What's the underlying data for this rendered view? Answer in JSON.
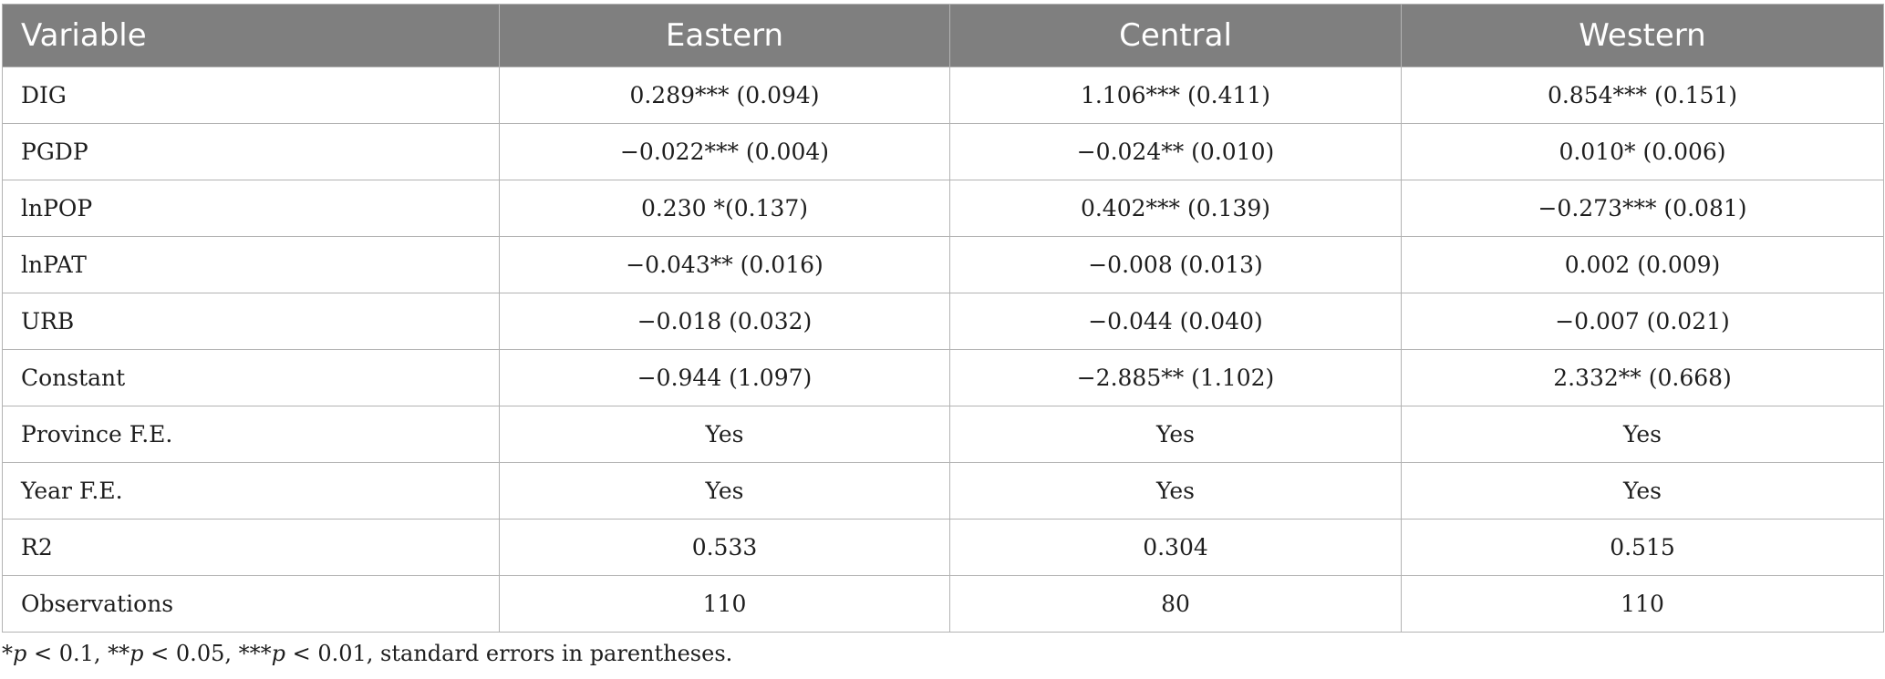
{
  "table": {
    "headers": [
      "Variable",
      "Eastern",
      "Central",
      "Western"
    ],
    "rows": [
      [
        "DIG",
        "0.289*** (0.094)",
        "1.106*** (0.411)",
        "0.854*** (0.151)"
      ],
      [
        "PGDP",
        "−0.022*** (0.004)",
        "−0.024** (0.010)",
        "0.010* (0.006)"
      ],
      [
        "lnPOP",
        "0.230 *(0.137)",
        "0.402*** (0.139)",
        "−0.273*** (0.081)"
      ],
      [
        "lnPAT",
        "−0.043** (0.016)",
        "−0.008 (0.013)",
        "0.002 (0.009)"
      ],
      [
        "URB",
        "−0.018 (0.032)",
        "−0.044 (0.040)",
        "−0.007 (0.021)"
      ],
      [
        "Constant",
        "−0.944 (1.097)",
        "−2.885** (1.102)",
        "2.332** (0.668)"
      ],
      [
        "Province F.E.",
        "Yes",
        "Yes",
        "Yes"
      ],
      [
        "Year F.E.",
        "Yes",
        "Yes",
        "Yes"
      ],
      [
        "R2",
        "0.533",
        "0.304",
        "0.515"
      ],
      [
        "Observations",
        "110",
        "80",
        "110"
      ]
    ]
  },
  "note": {
    "parts": [
      {
        "text": "*",
        "italic": false
      },
      {
        "text": "p",
        "italic": true
      },
      {
        "text": " < 0.1, **",
        "italic": false
      },
      {
        "text": "p",
        "italic": true
      },
      {
        "text": " < 0.05, ***",
        "italic": false
      },
      {
        "text": "p",
        "italic": true
      },
      {
        "text": " < 0.01, standard errors in parentheses.",
        "italic": false
      }
    ]
  }
}
